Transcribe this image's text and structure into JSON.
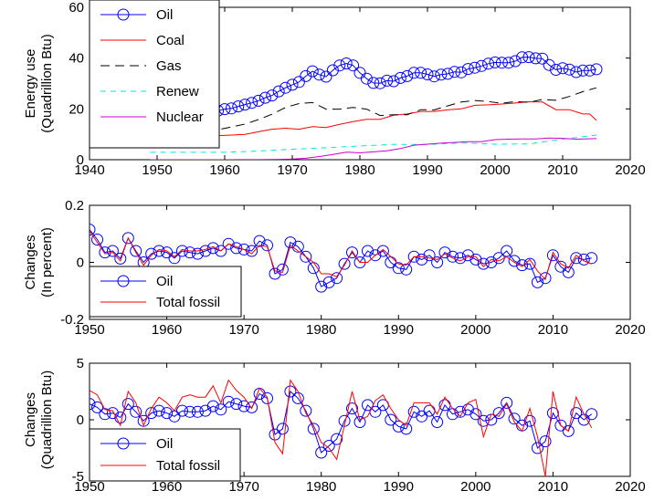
{
  "chart_data": [
    {
      "type": "line",
      "title": "",
      "xlabel": "",
      "ylabel": [
        "Energy use",
        "(Quadrillion Btu)"
      ],
      "xlim": [
        1940,
        2020
      ],
      "ylim": [
        0,
        60
      ],
      "xticks": [
        1940,
        1950,
        1960,
        1970,
        1980,
        1990,
        2000,
        2010,
        2020
      ],
      "yticks": [
        0,
        20,
        40,
        60
      ],
      "legend_position": "top-left",
      "x": [
        1949,
        1950,
        1951,
        1952,
        1953,
        1954,
        1955,
        1956,
        1957,
        1958,
        1959,
        1960,
        1961,
        1962,
        1963,
        1964,
        1965,
        1966,
        1967,
        1968,
        1969,
        1970,
        1971,
        1972,
        1973,
        1974,
        1975,
        1976,
        1977,
        1978,
        1979,
        1980,
        1981,
        1982,
        1983,
        1984,
        1985,
        1986,
        1987,
        1988,
        1989,
        1990,
        1991,
        1992,
        1993,
        1994,
        1995,
        1996,
        1997,
        1998,
        1999,
        2000,
        2001,
        2002,
        2003,
        2004,
        2005,
        2006,
        2007,
        2008,
        2009,
        2010,
        2011,
        2012,
        2013,
        2014,
        2015
      ],
      "series": [
        {
          "name": "Oil",
          "color": "#0000ff",
          "style": "solid-circle",
          "values": [
            11.9,
            13.3,
            14.4,
            14.9,
            15.5,
            15.7,
            17.3,
            18.0,
            17.9,
            18.5,
            19.3,
            19.9,
            20.2,
            21.0,
            21.7,
            22.4,
            23.2,
            24.4,
            25.3,
            26.9,
            28.3,
            29.5,
            30.6,
            32.9,
            34.8,
            33.5,
            32.7,
            35.2,
            37.1,
            37.9,
            37.1,
            34.2,
            31.9,
            30.2,
            30.1,
            31.1,
            30.9,
            32.2,
            32.9,
            34.2,
            34.2,
            33.6,
            32.8,
            33.5,
            33.8,
            34.6,
            34.4,
            35.7,
            36.2,
            36.9,
            37.8,
            38.3,
            38.2,
            38.2,
            38.8,
            40.3,
            40.4,
            39.9,
            39.8,
            37.3,
            35.4,
            36.0,
            35.5,
            34.5,
            35.1,
            35.1,
            35.6
          ]
        },
        {
          "name": "Coal",
          "color": "#ff0000",
          "style": "solid",
          "x": [
            1949,
            1951,
            1953,
            1955,
            1957,
            1959,
            1961,
            1963,
            1965,
            1967,
            1969,
            1971,
            1973,
            1975,
            1977,
            1979,
            1981,
            1983,
            1985,
            1987,
            1989,
            1991,
            1993,
            1995,
            1997,
            1999,
            2001,
            2003,
            2005,
            2007,
            2009,
            2011,
            2013,
            2014,
            2015
          ],
          "values": [
            12.0,
            13.2,
            12.5,
            11.5,
            11.2,
            9.5,
            9.7,
            10.0,
            11.0,
            12.0,
            12.4,
            12.0,
            13.0,
            12.7,
            13.9,
            15.0,
            15.9,
            15.9,
            17.5,
            18.0,
            19.0,
            19.0,
            19.6,
            20.0,
            21.4,
            21.6,
            21.9,
            22.3,
            22.8,
            22.7,
            19.7,
            19.7,
            18.0,
            18.0,
            15.5
          ]
        },
        {
          "name": "Gas",
          "color": "#000000",
          "style": "dashed",
          "x": [
            1949,
            1951,
            1953,
            1955,
            1957,
            1959,
            1961,
            1963,
            1965,
            1967,
            1969,
            1971,
            1973,
            1975,
            1977,
            1979,
            1981,
            1983,
            1985,
            1987,
            1989,
            1991,
            1993,
            1995,
            1997,
            1999,
            2001,
            2003,
            2005,
            2007,
            2009,
            2011,
            2013,
            2015
          ],
          "values": [
            5.5,
            7.0,
            8.0,
            9.0,
            10.5,
            11.8,
            12.9,
            14.0,
            15.8,
            17.9,
            20.6,
            22.1,
            22.5,
            19.9,
            19.9,
            20.6,
            19.9,
            17.4,
            17.7,
            17.7,
            19.7,
            19.6,
            21.2,
            22.7,
            23.3,
            22.9,
            22.2,
            22.9,
            22.6,
            23.7,
            23.4,
            24.9,
            26.8,
            28.3
          ]
        },
        {
          "name": "Renew",
          "color": "#00e5e5",
          "style": "dashed",
          "x": [
            1949,
            1955,
            1960,
            1965,
            1970,
            1975,
            1980,
            1985,
            1990,
            1995,
            2000,
            2005,
            2010,
            2015
          ],
          "values": [
            2.9,
            2.9,
            2.9,
            3.4,
            4.1,
            4.7,
            5.4,
            6.0,
            6.0,
            6.6,
            6.1,
            6.2,
            8.1,
            9.7
          ]
        },
        {
          "name": "Nuclear",
          "color": "#cc00cc",
          "style": "solid",
          "x": [
            1949,
            1956,
            1958,
            1960,
            1962,
            1965,
            1968,
            1970,
            1972,
            1974,
            1976,
            1978,
            1980,
            1982,
            1984,
            1986,
            1988,
            1990,
            1992,
            1994,
            1996,
            1998,
            2000,
            2002,
            2004,
            2006,
            2008,
            2010,
            2012,
            2015
          ],
          "values": [
            0,
            0,
            0,
            0.01,
            0.03,
            0.04,
            0.14,
            0.24,
            0.58,
            1.27,
            2.1,
            3.0,
            2.7,
            3.1,
            3.5,
            4.4,
            5.7,
            6.1,
            6.5,
            6.8,
            7.1,
            7.1,
            7.9,
            8.1,
            8.2,
            8.2,
            8.5,
            8.4,
            8.1,
            8.3
          ]
        }
      ]
    },
    {
      "type": "line",
      "title": "",
      "xlabel": "",
      "ylabel": [
        "Changes",
        "(In percent)"
      ],
      "xlim": [
        1950,
        2020
      ],
      "ylim": [
        -0.2,
        0.2
      ],
      "xticks": [
        1950,
        1960,
        1970,
        1980,
        1990,
        2000,
        2010,
        2020
      ],
      "yticks": [
        -0.2,
        0,
        0.2
      ],
      "ytick_labels": [
        "-0.2",
        "0",
        "0.2"
      ],
      "legend_position": "bottom-left",
      "x": [
        1950,
        1951,
        1952,
        1953,
        1954,
        1955,
        1956,
        1957,
        1958,
        1959,
        1960,
        1961,
        1962,
        1963,
        1964,
        1965,
        1966,
        1967,
        1968,
        1969,
        1970,
        1971,
        1972,
        1973,
        1974,
        1975,
        1976,
        1977,
        1978,
        1979,
        1980,
        1981,
        1982,
        1983,
        1984,
        1985,
        1986,
        1987,
        1988,
        1989,
        1990,
        1991,
        1992,
        1993,
        1994,
        1995,
        1996,
        1997,
        1998,
        1999,
        2000,
        2001,
        2002,
        2003,
        2004,
        2005,
        2006,
        2007,
        2008,
        2009,
        2010,
        2011,
        2012,
        2013,
        2014,
        2015
      ],
      "series": [
        {
          "name": "Oil",
          "color": "#0000ff",
          "style": "solid-circle",
          "values": [
            0.115,
            0.08,
            0.035,
            0.04,
            0.013,
            0.085,
            0.04,
            0.0,
            0.03,
            0.04,
            0.035,
            0.015,
            0.04,
            0.035,
            0.03,
            0.04,
            0.05,
            0.04,
            0.065,
            0.05,
            0.045,
            0.04,
            0.075,
            0.06,
            -0.04,
            -0.025,
            0.07,
            0.055,
            0.02,
            -0.02,
            -0.085,
            -0.07,
            -0.055,
            -0.005,
            0.035,
            0.0,
            0.04,
            0.025,
            0.04,
            0.0,
            -0.02,
            -0.025,
            0.02,
            0.01,
            0.025,
            0.0,
            0.035,
            0.02,
            0.015,
            0.025,
            0.01,
            -0.005,
            0.0,
            0.015,
            0.04,
            0.005,
            -0.01,
            -0.005,
            -0.07,
            -0.055,
            0.025,
            -0.015,
            -0.035,
            0.015,
            0.01,
            0.015
          ]
        },
        {
          "name": "Total fossil",
          "color": "#ff0000",
          "style": "solid",
          "values": [
            0.11,
            0.07,
            0.03,
            0.035,
            0.005,
            0.085,
            0.035,
            -0.01,
            0.025,
            0.045,
            0.04,
            0.02,
            0.045,
            0.04,
            0.04,
            0.045,
            0.055,
            0.04,
            0.065,
            0.055,
            0.045,
            0.03,
            0.06,
            0.055,
            -0.03,
            -0.035,
            0.06,
            0.04,
            0.02,
            0.0,
            -0.04,
            -0.04,
            -0.05,
            -0.01,
            0.04,
            0.0,
            0.0,
            0.025,
            0.045,
            0.02,
            -0.005,
            -0.01,
            0.02,
            0.02,
            0.015,
            0.01,
            0.03,
            0.015,
            0.005,
            0.02,
            0.02,
            -0.015,
            0.01,
            0.005,
            0.02,
            0.0,
            -0.015,
            0.01,
            -0.03,
            -0.06,
            0.035,
            -0.005,
            -0.02,
            0.025,
            0.005,
            -0.005
          ]
        }
      ]
    },
    {
      "type": "line",
      "title": "",
      "xlabel": "",
      "ylabel": [
        "Changes",
        "(Quadrillion Btu)"
      ],
      "xlim": [
        1950,
        2020
      ],
      "ylim": [
        -5,
        5
      ],
      "xticks": [
        1950,
        1960,
        1970,
        1980,
        1990,
        2000,
        2010,
        2020
      ],
      "yticks": [
        -5,
        0,
        5
      ],
      "ytick_labels": [
        "-5",
        "0",
        "5"
      ],
      "legend_position": "bottom-left",
      "x": [
        1950,
        1951,
        1952,
        1953,
        1954,
        1955,
        1956,
        1957,
        1958,
        1959,
        1960,
        1961,
        1962,
        1963,
        1964,
        1965,
        1966,
        1967,
        1968,
        1969,
        1970,
        1971,
        1972,
        1973,
        1974,
        1975,
        1976,
        1977,
        1978,
        1979,
        1980,
        1981,
        1982,
        1983,
        1984,
        1985,
        1986,
        1987,
        1988,
        1989,
        1990,
        1991,
        1992,
        1993,
        1994,
        1995,
        1996,
        1997,
        1998,
        1999,
        2000,
        2001,
        2002,
        2003,
        2004,
        2005,
        2006,
        2007,
        2008,
        2009,
        2010,
        2011,
        2012,
        2013,
        2014,
        2015
      ],
      "series": [
        {
          "name": "Oil",
          "color": "#0000ff",
          "style": "solid-circle",
          "values": [
            1.4,
            1.1,
            0.5,
            0.6,
            0.2,
            1.4,
            0.7,
            -0.1,
            0.6,
            0.8,
            0.6,
            0.3,
            0.8,
            0.7,
            0.7,
            0.8,
            1.2,
            0.9,
            1.6,
            1.4,
            1.2,
            1.1,
            2.3,
            1.9,
            -1.3,
            -0.8,
            2.5,
            1.9,
            0.8,
            -0.8,
            -2.9,
            -2.3,
            -1.7,
            -0.1,
            1.0,
            -0.2,
            1.3,
            0.7,
            1.3,
            0.0,
            -0.6,
            -0.8,
            0.7,
            0.3,
            0.8,
            -0.2,
            1.3,
            0.5,
            0.7,
            0.9,
            0.5,
            -0.1,
            0.0,
            0.6,
            1.5,
            0.1,
            -0.5,
            -0.1,
            -2.5,
            -1.9,
            0.6,
            -0.5,
            -1.0,
            0.6,
            0.0,
            0.5
          ]
        },
        {
          "name": "Total fossil",
          "color": "#ff0000",
          "style": "solid",
          "values": [
            2.6,
            2.2,
            0.9,
            0.8,
            -0.5,
            2.5,
            1.5,
            -0.5,
            1.0,
            2.0,
            1.5,
            0.8,
            2.0,
            2.2,
            2.0,
            2.0,
            3.0,
            1.5,
            3.5,
            2.6,
            2.0,
            1.0,
            2.8,
            2.0,
            -2.0,
            -3.0,
            3.5,
            2.5,
            0.6,
            -0.5,
            -2.0,
            -2.5,
            -3.5,
            -0.5,
            2.5,
            0.0,
            0.3,
            1.7,
            2.2,
            1.0,
            0.0,
            -0.5,
            1.5,
            1.5,
            1.5,
            0.5,
            2.0,
            1.0,
            0.3,
            1.5,
            1.8,
            -1.5,
            0.5,
            0.3,
            1.4,
            -0.2,
            -1.0,
            1.0,
            -1.5,
            -5.0,
            2.5,
            -0.5,
            -1.0,
            2.0,
            0.5,
            -0.7
          ]
        }
      ]
    }
  ]
}
